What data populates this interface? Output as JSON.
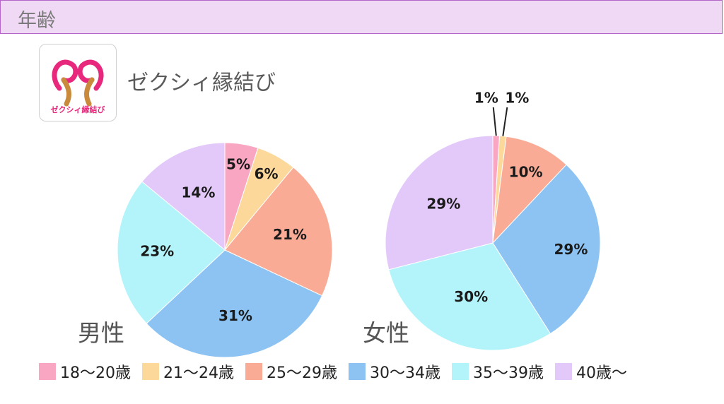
{
  "header": {
    "title": "年齢"
  },
  "logo": {
    "caption": "ゼクシィ縁結び"
  },
  "brand": {
    "name": "ゼクシィ縁結び"
  },
  "colors": {
    "header_bg": "#f0d9f4",
    "header_border": "#b466c8",
    "slices": [
      "#f9a6c2",
      "#fcd99b",
      "#f9ab96",
      "#8dc3f2",
      "#b3f4fb",
      "#e3c9fa"
    ]
  },
  "legend": [
    "18〜20歳",
    "21〜24歳",
    "25〜29歳",
    "30〜34歳",
    "35〜39歳",
    "40歳〜"
  ],
  "chart_data": [
    {
      "type": "pie",
      "label": "男性",
      "categories": [
        "18〜20歳",
        "21〜24歳",
        "25〜29歳",
        "30〜34歳",
        "35〜39歳",
        "40歳〜"
      ],
      "values": [
        5,
        6,
        21,
        31,
        23,
        14
      ],
      "value_labels": [
        "5%",
        "6%",
        "21%",
        "31%",
        "23%",
        "14%"
      ]
    },
    {
      "type": "pie",
      "label": "女性",
      "categories": [
        "18〜20歳",
        "21〜24歳",
        "25〜29歳",
        "30〜34歳",
        "35〜39歳",
        "40歳〜"
      ],
      "values": [
        1,
        1,
        10,
        29,
        30,
        29
      ],
      "value_labels": [
        "1%",
        "1%",
        "10%",
        "29%",
        "30%",
        "29%"
      ]
    }
  ]
}
